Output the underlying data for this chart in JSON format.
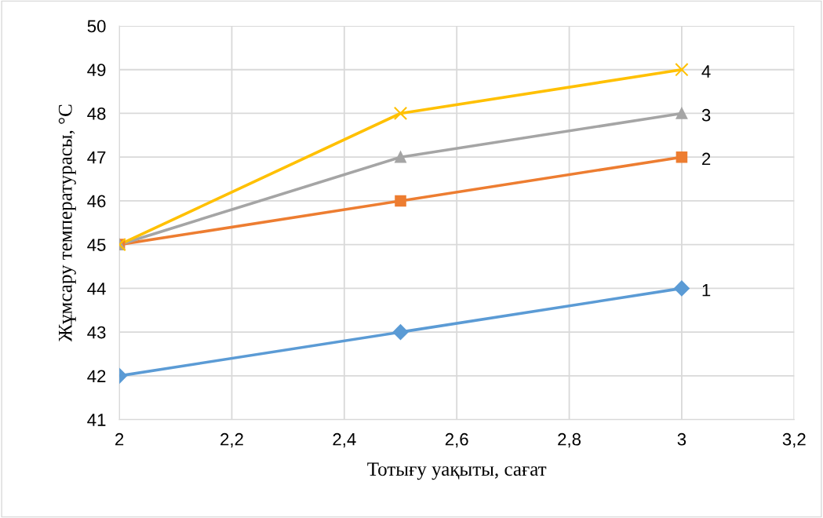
{
  "chart_data": {
    "type": "line",
    "xlabel": "Тотығу уақыты, сағат",
    "ylabel": "Жұмсару температурасы, °C",
    "x": [
      2,
      2.5,
      3
    ],
    "series": [
      {
        "name": "1",
        "color": "#5b9bd5",
        "marker": "diamond",
        "values": [
          42,
          43,
          44
        ]
      },
      {
        "name": "2",
        "color": "#ed7d31",
        "marker": "square",
        "values": [
          45,
          46,
          47
        ]
      },
      {
        "name": "3",
        "color": "#a5a5a5",
        "marker": "triangle",
        "values": [
          45,
          47,
          48
        ]
      },
      {
        "name": "4",
        "color": "#ffc000",
        "marker": "cross",
        "values": [
          45,
          48,
          49
        ]
      }
    ],
    "xlim": [
      2,
      3.2
    ],
    "xticks": [
      2,
      {
        "value": 2.2,
        "label": "2,2"
      },
      {
        "value": 2.4,
        "label": "2,4"
      },
      {
        "value": 2.6,
        "label": "2,6"
      },
      {
        "value": 2.8,
        "label": "2,8"
      },
      3,
      {
        "value": 3.2,
        "label": "3,2"
      }
    ],
    "ylim": [
      41,
      50
    ],
    "yticks": [
      41,
      42,
      43,
      44,
      45,
      46,
      47,
      48,
      49,
      50
    ],
    "grid": true,
    "legend": false,
    "line_style": "solid"
  }
}
